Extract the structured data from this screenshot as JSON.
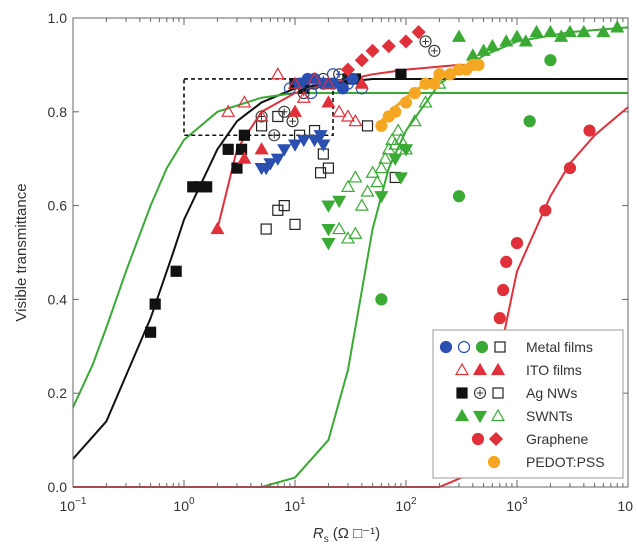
{
  "chart_data": {
    "type": "scatter",
    "title": "",
    "xlabel_main": "R",
    "xlabel_sub": "s",
    "xlabel_unit": "(Ω □⁻¹)",
    "ylabel": "Visible transmittance",
    "x_scale": "log",
    "xlim": [
      0.1,
      10000
    ],
    "ylim": [
      0.0,
      1.0
    ],
    "x_ticks": [
      {
        "v": 0.1,
        "base": "10",
        "exp": "−1"
      },
      {
        "v": 1,
        "base": "10",
        "exp": "0"
      },
      {
        "v": 10,
        "base": "10",
        "exp": "1"
      },
      {
        "v": 100,
        "base": "10",
        "exp": "2"
      },
      {
        "v": 1000,
        "base": "10",
        "exp": "3"
      },
      {
        "v": 10000,
        "base": "10",
        "exp": ""
      }
    ],
    "y_ticks": [
      "0.0",
      "0.2",
      "0.4",
      "0.6",
      "0.8",
      "1.0"
    ],
    "y_tick_values": [
      0.0,
      0.2,
      0.4,
      0.6,
      0.8,
      1.0
    ],
    "grid": false,
    "legend_position": "bottom-right",
    "legend": [
      {
        "label": "Metal films",
        "markers": [
          {
            "shape": "circle",
            "fill": true,
            "color": "#2b4fb0"
          },
          {
            "shape": "circle",
            "fill": false,
            "color": "#2b4fb0"
          },
          {
            "shape": "circle",
            "fill": true,
            "color": "#3aaa35"
          },
          {
            "shape": "square",
            "fill": false,
            "color": "#222222"
          }
        ]
      },
      {
        "label": "ITO films",
        "markers": [
          {
            "shape": "triangle-up",
            "fill": false,
            "color": "#e0303a"
          },
          {
            "shape": "triangle-up",
            "fill": true,
            "color": "#e0303a"
          },
          {
            "shape": "triangle-up",
            "fill": true,
            "color": "#e0303a"
          }
        ]
      },
      {
        "label": "Ag NWs",
        "markers": [
          {
            "shape": "square",
            "fill": true,
            "color": "#111111"
          },
          {
            "shape": "circle-plus",
            "fill": false,
            "color": "#333333"
          },
          {
            "shape": "square",
            "fill": false,
            "color": "#222222"
          }
        ]
      },
      {
        "label": "SWNTs",
        "markers": [
          {
            "shape": "triangle-up",
            "fill": true,
            "color": "#3aaa35"
          },
          {
            "shape": "triangle-down",
            "fill": true,
            "color": "#3aaa35"
          },
          {
            "shape": "triangle-up",
            "fill": false,
            "color": "#3aaa35"
          }
        ]
      },
      {
        "label": "Graphene",
        "markers": [
          {
            "shape": "circle",
            "fill": true,
            "color": "#e0303a"
          },
          {
            "shape": "diamond",
            "fill": true,
            "color": "#e0303a"
          }
        ]
      },
      {
        "label": "PEDOT:PSS",
        "markers": [
          {
            "shape": "circle",
            "fill": true,
            "color": "#f5a623"
          }
        ]
      }
    ],
    "dashed_box": {
      "x_range": [
        1.0,
        22
      ],
      "y_range": [
        0.75,
        0.87
      ]
    },
    "curves": [
      {
        "color": "#111111",
        "points": [
          [
            0.1,
            0.06
          ],
          [
            0.2,
            0.14
          ],
          [
            0.5,
            0.36
          ],
          [
            0.8,
            0.5
          ],
          [
            1,
            0.57
          ],
          [
            2,
            0.72
          ],
          [
            3,
            0.78
          ],
          [
            5,
            0.82
          ],
          [
            10,
            0.85
          ],
          [
            20,
            0.86
          ],
          [
            50,
            0.87
          ],
          [
            100,
            0.87
          ],
          [
            10000,
            0.87
          ]
        ]
      },
      {
        "color": "#3aaa35",
        "points": [
          [
            0.1,
            0.17
          ],
          [
            0.15,
            0.26
          ],
          [
            0.2,
            0.34
          ],
          [
            0.3,
            0.46
          ],
          [
            0.5,
            0.6
          ],
          [
            0.7,
            0.68
          ],
          [
            1,
            0.74
          ],
          [
            2,
            0.8
          ],
          [
            5,
            0.83
          ],
          [
            10,
            0.84
          ],
          [
            100,
            0.84
          ],
          [
            10000,
            0.84
          ]
        ]
      },
      {
        "color": "#3aaa35",
        "points": [
          [
            0.1,
            0.0
          ],
          [
            5,
            0.0
          ],
          [
            10,
            0.02
          ],
          [
            20,
            0.1
          ],
          [
            30,
            0.25
          ],
          [
            50,
            0.55
          ],
          [
            70,
            0.68
          ],
          [
            100,
            0.76
          ],
          [
            200,
            0.86
          ],
          [
            500,
            0.92
          ],
          [
            1000,
            0.95
          ],
          [
            3000,
            0.97
          ],
          [
            10000,
            0.98
          ]
        ]
      },
      {
        "color": "#e0303a",
        "points": [
          [
            0.1,
            0.0
          ],
          [
            200,
            0.0
          ],
          [
            400,
            0.03
          ],
          [
            500,
            0.1
          ],
          [
            600,
            0.2
          ],
          [
            800,
            0.35
          ],
          [
            1000,
            0.46
          ],
          [
            2000,
            0.62
          ],
          [
            3000,
            0.69
          ],
          [
            5000,
            0.75
          ],
          [
            10000,
            0.81
          ]
        ]
      },
      {
        "color": "#e0303a",
        "points": [
          [
            2,
            0.55
          ],
          [
            3,
            0.72
          ],
          [
            5,
            0.8
          ],
          [
            10,
            0.84
          ],
          [
            20,
            0.86
          ],
          [
            50,
            0.88
          ],
          [
            100,
            0.89
          ],
          [
            300,
            0.9
          ],
          [
            500,
            0.9
          ]
        ]
      },
      {
        "color": "#f5a623",
        "points": [
          [
            60,
            0.78
          ],
          [
            80,
            0.81
          ],
          [
            100,
            0.83
          ],
          [
            150,
            0.86
          ],
          [
            200,
            0.87
          ],
          [
            300,
            0.89
          ],
          [
            400,
            0.9
          ]
        ]
      }
    ],
    "series": [
      {
        "shape": "square",
        "fill": true,
        "color": "#111111",
        "points": [
          [
            0.5,
            0.33
          ],
          [
            0.55,
            0.39
          ],
          [
            0.85,
            0.46
          ],
          [
            1.2,
            0.64
          ],
          [
            1.4,
            0.64
          ],
          [
            1.6,
            0.64
          ],
          [
            2.5,
            0.72
          ],
          [
            3.0,
            0.68
          ],
          [
            3.3,
            0.72
          ],
          [
            3.5,
            0.75
          ],
          [
            10,
            0.86
          ],
          [
            12,
            0.85
          ],
          [
            20,
            0.86
          ],
          [
            30,
            0.87
          ],
          [
            35,
            0.87
          ],
          [
            90,
            0.88
          ]
        ]
      },
      {
        "shape": "square",
        "fill": false,
        "color": "#222222",
        "points": [
          [
            5.5,
            0.55
          ],
          [
            7,
            0.59
          ],
          [
            8,
            0.6
          ],
          [
            10,
            0.56
          ],
          [
            5,
            0.77
          ],
          [
            7,
            0.79
          ],
          [
            11,
            0.75
          ],
          [
            15,
            0.76
          ],
          [
            18,
            0.71
          ],
          [
            20,
            0.68
          ],
          [
            17,
            0.67
          ],
          [
            45,
            0.77
          ],
          [
            80,
            0.66
          ]
        ]
      },
      {
        "shape": "circle-plus",
        "fill": false,
        "color": "#333333",
        "points": [
          [
            5,
            0.79
          ],
          [
            6.5,
            0.75
          ],
          [
            8,
            0.8
          ],
          [
            9.5,
            0.78
          ],
          [
            12,
            0.84
          ],
          [
            15,
            0.86
          ],
          [
            18,
            0.87
          ],
          [
            25,
            0.88
          ],
          [
            150,
            0.95
          ],
          [
            180,
            0.93
          ]
        ]
      },
      {
        "shape": "circle",
        "fill": true,
        "color": "#2b4fb0",
        "points": [
          [
            11,
            0.86
          ],
          [
            13,
            0.87
          ],
          [
            15,
            0.87
          ],
          [
            18,
            0.86
          ],
          [
            22,
            0.86
          ],
          [
            27,
            0.85
          ],
          [
            33,
            0.87
          ]
        ]
      },
      {
        "shape": "circle",
        "fill": false,
        "color": "#2b4fb0",
        "points": [
          [
            9,
            0.85
          ],
          [
            14,
            0.84
          ],
          [
            22,
            0.88
          ],
          [
            30,
            0.86
          ],
          [
            40,
            0.85
          ]
        ]
      },
      {
        "shape": "triangle-down",
        "fill": true,
        "color": "#2b4fb0",
        "points": [
          [
            5,
            0.68
          ],
          [
            5.5,
            0.68
          ],
          [
            6,
            0.69
          ],
          [
            7,
            0.7
          ],
          [
            8,
            0.72
          ],
          [
            10,
            0.73
          ],
          [
            12,
            0.74
          ],
          [
            15,
            0.74
          ],
          [
            17,
            0.75
          ],
          [
            18,
            0.73
          ]
        ]
      },
      {
        "shape": "triangle-up",
        "fill": true,
        "color": "#e0303a",
        "points": [
          [
            2,
            0.55
          ],
          [
            3.5,
            0.7
          ],
          [
            5,
            0.72
          ],
          [
            10,
            0.8
          ],
          [
            20,
            0.82
          ],
          [
            40,
            0.86
          ]
        ]
      },
      {
        "shape": "triangle-up",
        "fill": false,
        "color": "#e0303a",
        "points": [
          [
            2.5,
            0.8
          ],
          [
            3.5,
            0.82
          ],
          [
            5,
            0.79
          ],
          [
            7,
            0.88
          ],
          [
            10,
            0.86
          ],
          [
            12,
            0.83
          ],
          [
            15,
            0.87
          ],
          [
            20,
            0.86
          ],
          [
            25,
            0.8
          ],
          [
            30,
            0.79
          ],
          [
            35,
            0.78
          ]
        ]
      },
      {
        "shape": "diamond",
        "fill": true,
        "color": "#e0303a",
        "points": [
          [
            30,
            0.89
          ],
          [
            40,
            0.91
          ],
          [
            50,
            0.93
          ],
          [
            70,
            0.94
          ],
          [
            100,
            0.95
          ],
          [
            130,
            0.97
          ]
        ]
      },
      {
        "shape": "circle",
        "fill": true,
        "color": "#e0303a",
        "points": [
          [
            700,
            0.36
          ],
          [
            750,
            0.42
          ],
          [
            800,
            0.48
          ],
          [
            1000,
            0.52
          ],
          [
            1800,
            0.59
          ],
          [
            3000,
            0.68
          ],
          [
            4500,
            0.76
          ]
        ]
      },
      {
        "shape": "circle",
        "fill": true,
        "color": "#3aaa35",
        "points": [
          [
            60,
            0.4
          ],
          [
            300,
            0.62
          ],
          [
            1300,
            0.78
          ],
          [
            2000,
            0.91
          ]
        ]
      },
      {
        "shape": "triangle-up",
        "fill": true,
        "color": "#3aaa35",
        "points": [
          [
            300,
            0.96
          ],
          [
            400,
            0.92
          ],
          [
            500,
            0.93
          ],
          [
            600,
            0.94
          ],
          [
            800,
            0.95
          ],
          [
            1000,
            0.96
          ],
          [
            1200,
            0.95
          ],
          [
            1500,
            0.97
          ],
          [
            2000,
            0.97
          ],
          [
            2500,
            0.96
          ],
          [
            3000,
            0.97
          ],
          [
            4000,
            0.97
          ],
          [
            6000,
            0.97
          ],
          [
            8000,
            0.98
          ]
        ]
      },
      {
        "shape": "triangle-down",
        "fill": true,
        "color": "#3aaa35",
        "points": [
          [
            20,
            0.52
          ],
          [
            20,
            0.55
          ],
          [
            20,
            0.6
          ],
          [
            25,
            0.61
          ],
          [
            60,
            0.62
          ],
          [
            80,
            0.7
          ],
          [
            90,
            0.66
          ],
          [
            100,
            0.72
          ]
        ]
      },
      {
        "shape": "triangle-up",
        "fill": false,
        "color": "#3aaa35",
        "points": [
          [
            30,
            0.64
          ],
          [
            35,
            0.66
          ],
          [
            40,
            0.6
          ],
          [
            45,
            0.63
          ],
          [
            50,
            0.67
          ],
          [
            55,
            0.65
          ],
          [
            60,
            0.68
          ],
          [
            65,
            0.7
          ],
          [
            70,
            0.72
          ],
          [
            75,
            0.74
          ],
          [
            80,
            0.73
          ],
          [
            85,
            0.76
          ],
          [
            90,
            0.74
          ],
          [
            100,
            0.72
          ],
          [
            120,
            0.78
          ],
          [
            150,
            0.82
          ],
          [
            200,
            0.86
          ],
          [
            25,
            0.55
          ],
          [
            30,
            0.53
          ],
          [
            35,
            0.54
          ]
        ]
      },
      {
        "shape": "circle",
        "fill": true,
        "color": "#f5a623",
        "points": [
          [
            60,
            0.77
          ],
          [
            70,
            0.79
          ],
          [
            80,
            0.8
          ],
          [
            100,
            0.82
          ],
          [
            120,
            0.84
          ],
          [
            150,
            0.86
          ],
          [
            180,
            0.86
          ],
          [
            200,
            0.88
          ],
          [
            250,
            0.88
          ],
          [
            300,
            0.89
          ],
          [
            350,
            0.89
          ],
          [
            400,
            0.9
          ],
          [
            450,
            0.9
          ]
        ]
      }
    ]
  }
}
